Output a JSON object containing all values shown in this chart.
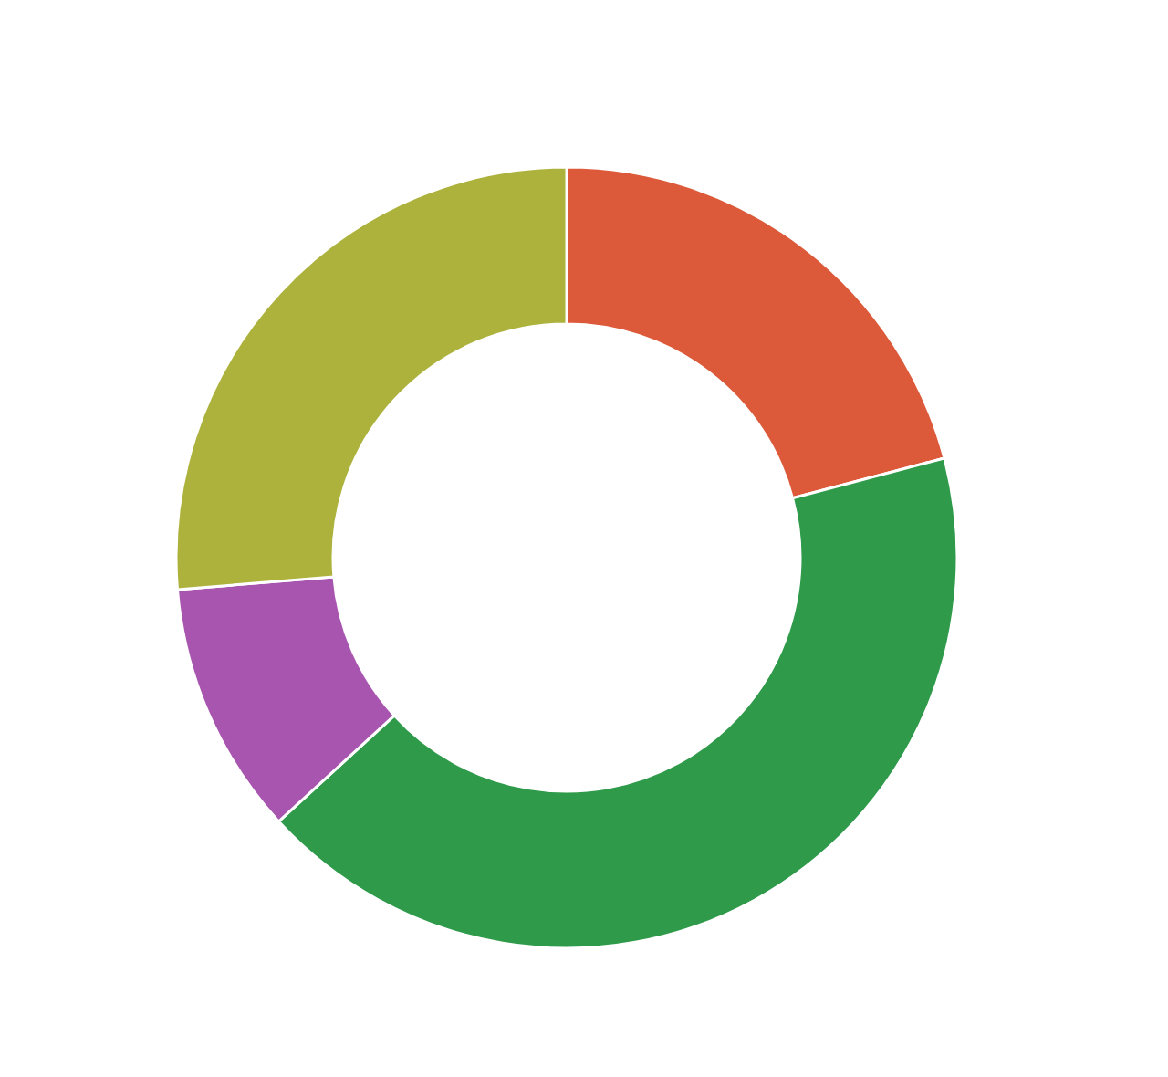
{
  "chart_data": {
    "type": "donut",
    "categories": [
      null,
      null,
      null,
      null
    ],
    "values": [
      20.9,
      42.3,
      10.5,
      26.3
    ],
    "colors": [
      "#dc5a3a",
      "#2e9a4a",
      "#a855b0",
      "#adb23c"
    ]
  }
}
